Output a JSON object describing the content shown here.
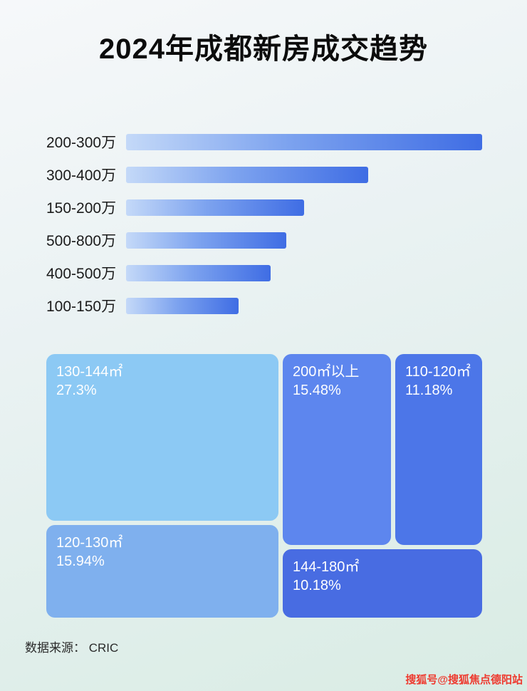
{
  "page": {
    "title": "2024年成都新房成交趋势",
    "source_label": "数据来源： CRIC",
    "watermark": "搜狐号@搜狐焦点德阳站"
  },
  "colors": {
    "bar_gradient_start": "#c4d9f8",
    "bar_gradient_end": "#3f6de4",
    "background_top": "#f6f8fa",
    "background_bottom": "#d9ece4",
    "watermark_red": "#ee3a2f"
  },
  "chart_data": [
    {
      "type": "bar",
      "orientation": "horizontal",
      "title": "2024年成都新房成交趋势",
      "xlabel": "",
      "ylabel": "",
      "grid": false,
      "legend": false,
      "categories": [
        "200-300万",
        "300-400万",
        "150-200万",
        "500-800万",
        "400-500万",
        "100-150万"
      ],
      "values": [
        100,
        68,
        50,
        45,
        40.5,
        31.5
      ],
      "value_note": "no numeric axis or data labels shown; values are bar lengths as % of the longest bar"
    },
    {
      "type": "treemap",
      "value_unit": "%",
      "items": [
        {
          "label": "130-144㎡",
          "value": 27.3,
          "display": "27.3%",
          "color": "#8cc9f4"
        },
        {
          "label": "120-130㎡",
          "value": 15.94,
          "display": "15.94%",
          "color": "#7fb0ee"
        },
        {
          "label": "200㎡以上",
          "value": 15.48,
          "display": "15.48%",
          "color": "#5d86ee"
        },
        {
          "label": "110-120㎡",
          "value": 11.18,
          "display": "11.18%",
          "color": "#4c76e8"
        },
        {
          "label": "144-180㎡",
          "value": 10.18,
          "display": "10.18%",
          "color": "#486ce2"
        }
      ]
    }
  ]
}
